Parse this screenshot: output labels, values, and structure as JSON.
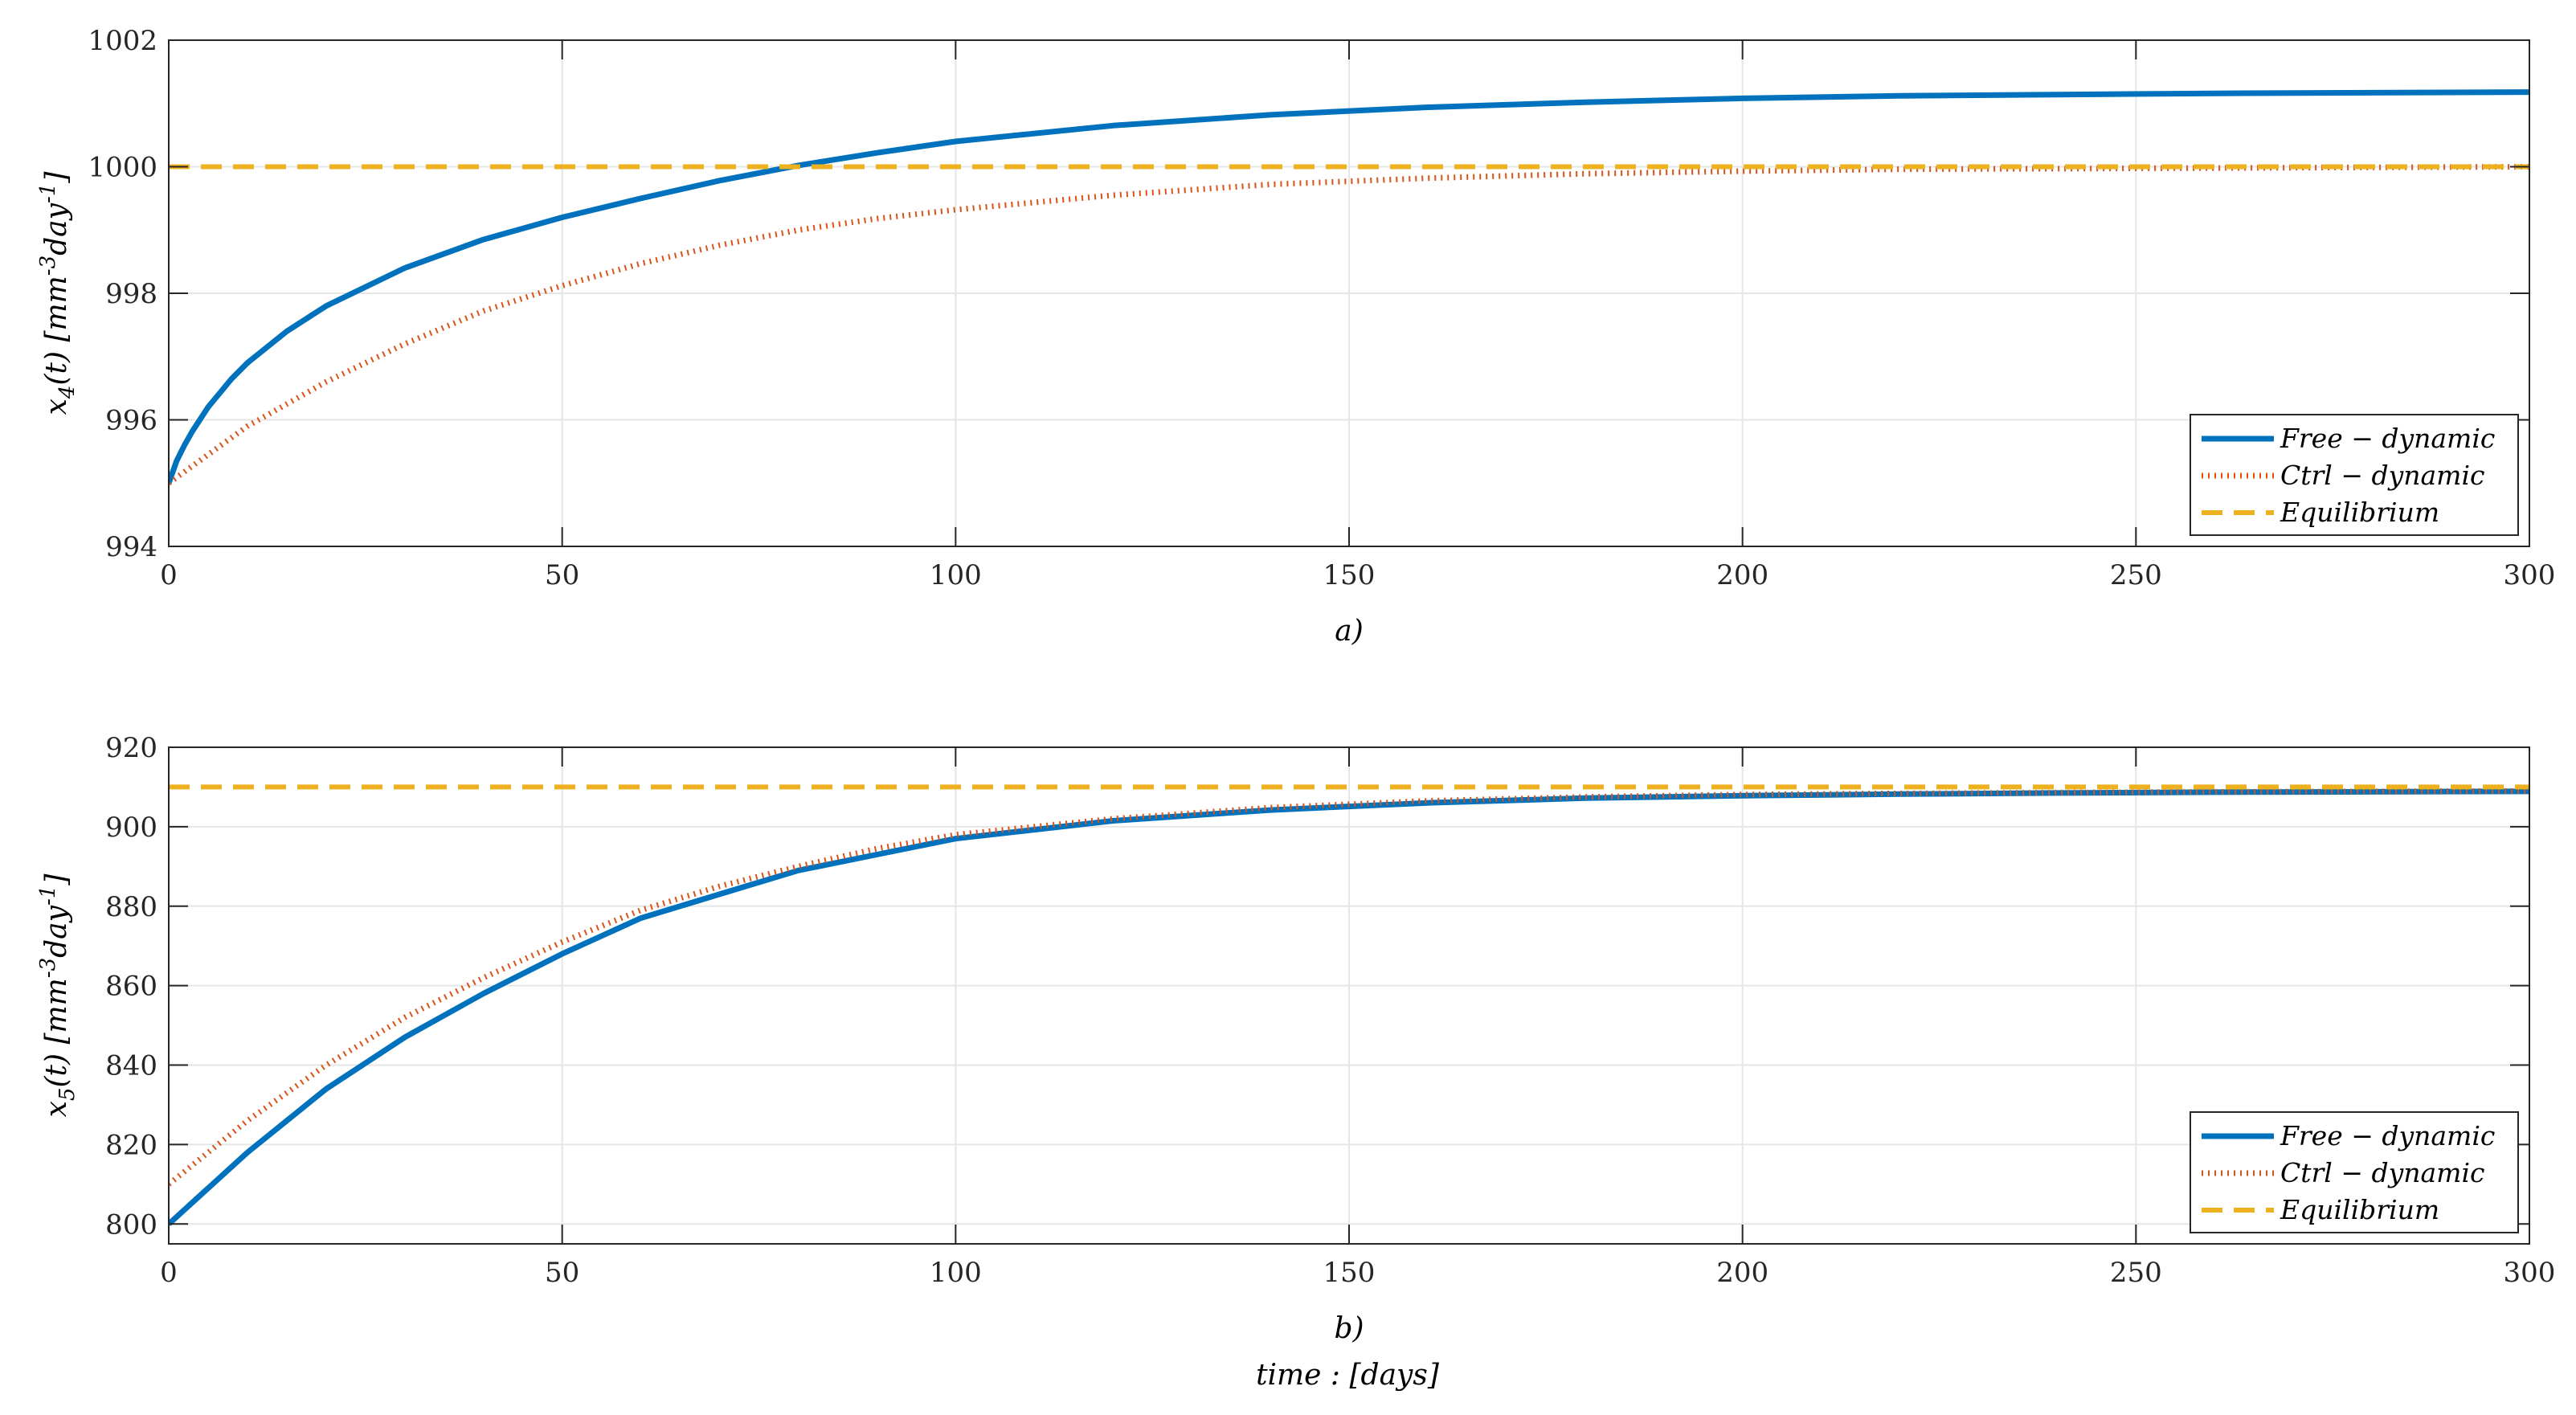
{
  "figure": {
    "xlabel": "time : [days]"
  },
  "colors": {
    "free": "#0072BD",
    "ctrl": "#D95319",
    "equilibrium": "#EDB120",
    "grid": "#e6e6e6",
    "axis": "#262626"
  },
  "chart_data": [
    {
      "type": "line",
      "caption": "a)",
      "ylabel_main": "x",
      "ylabel_sub": "4",
      "ylabel_rest": "(t) [mm",
      "ylabel_sup1": "-3",
      "ylabel_mid": "day",
      "ylabel_sup2": "-1",
      "ylabel_end": "]",
      "xlim": [
        0,
        300
      ],
      "ylim": [
        994,
        1002
      ],
      "xticks": [
        0,
        50,
        100,
        150,
        200,
        250,
        300
      ],
      "yticks": [
        994,
        996,
        998,
        1000,
        1002
      ],
      "grid": true,
      "legend_position": "bottom-right",
      "series": [
        {
          "name": "Free − dynamic",
          "style": "solid",
          "x": [
            0,
            1,
            2,
            3,
            5,
            8,
            10,
            15,
            20,
            30,
            40,
            50,
            60,
            70,
            80,
            90,
            100,
            120,
            140,
            160,
            180,
            200,
            220,
            240,
            260,
            280,
            300
          ],
          "y": [
            995.0,
            995.35,
            995.6,
            995.82,
            996.2,
            996.65,
            996.9,
            997.4,
            997.8,
            998.4,
            998.85,
            999.2,
            999.5,
            999.78,
            1000.02,
            1000.22,
            1000.4,
            1000.65,
            1000.82,
            1000.94,
            1001.02,
            1001.08,
            1001.12,
            1001.14,
            1001.16,
            1001.17,
            1001.18
          ]
        },
        {
          "name": "Ctrl − dynamic",
          "style": "dotted",
          "x": [
            0,
            5,
            10,
            20,
            30,
            40,
            50,
            60,
            70,
            80,
            90,
            100,
            120,
            140,
            160,
            180,
            200,
            220,
            240,
            260,
            280,
            300
          ],
          "y": [
            995.0,
            995.45,
            995.9,
            996.6,
            997.2,
            997.72,
            998.12,
            998.47,
            998.76,
            999.0,
            999.18,
            999.32,
            999.55,
            999.72,
            999.82,
            999.89,
            999.93,
            999.96,
            999.97,
            999.98,
            999.99,
            1000.0
          ]
        },
        {
          "name": "Equilibrium",
          "style": "dashed",
          "x": [
            0,
            300
          ],
          "y": [
            1000,
            1000
          ]
        }
      ]
    },
    {
      "type": "line",
      "caption": "b)",
      "ylabel_main": "x",
      "ylabel_sub": "5",
      "ylabel_rest": "(t) [mm",
      "ylabel_sup1": "-3",
      "ylabel_mid": "day",
      "ylabel_sup2": "-1",
      "ylabel_end": "]",
      "xlim": [
        0,
        300
      ],
      "ylim": [
        795,
        920
      ],
      "xticks": [
        0,
        50,
        100,
        150,
        200,
        250,
        300
      ],
      "yticks": [
        800,
        820,
        840,
        860,
        880,
        900,
        920
      ],
      "grid": true,
      "legend_position": "bottom-right",
      "series": [
        {
          "name": "Free − dynamic",
          "style": "solid",
          "x": [
            0,
            10,
            20,
            30,
            40,
            50,
            60,
            70,
            80,
            90,
            100,
            120,
            140,
            160,
            180,
            200,
            220,
            240,
            260,
            280,
            300
          ],
          "y": [
            800,
            818,
            834,
            847,
            858,
            868,
            877,
            883,
            889,
            893,
            897,
            901.5,
            904.2,
            906,
            907.2,
            907.8,
            908.2,
            908.5,
            908.7,
            908.8,
            908.9
          ]
        },
        {
          "name": "Ctrl − dynamic",
          "style": "dotted",
          "x": [
            0,
            10,
            20,
            30,
            40,
            50,
            60,
            70,
            80,
            90,
            100,
            120,
            140,
            160,
            180,
            200,
            220,
            240,
            260,
            280,
            300
          ],
          "y": [
            810,
            826,
            840,
            852,
            862,
            871,
            879,
            885,
            890,
            894.5,
            898,
            902,
            904.8,
            906.5,
            907.5,
            908.1,
            908.4,
            908.6,
            908.8,
            908.9,
            909
          ]
        },
        {
          "name": "Equilibrium",
          "style": "dashed",
          "x": [
            0,
            300
          ],
          "y": [
            910,
            910
          ]
        }
      ]
    }
  ]
}
